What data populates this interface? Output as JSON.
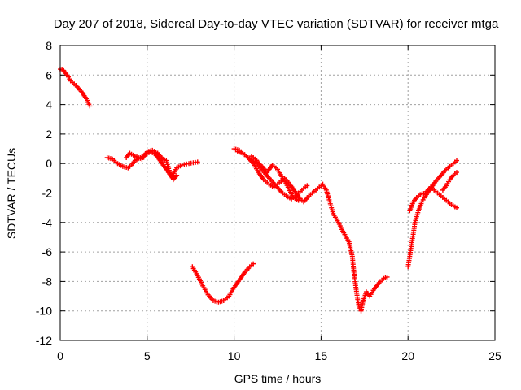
{
  "chart_data": {
    "type": "scatter",
    "title": "Day 207 of 2018, Sidereal Day-to-day VTEC variation (SDTVAR) for receiver mtga",
    "xlabel": "GPS time / hours",
    "ylabel": "SDTVAR / TECUs",
    "xlim": [
      0,
      25
    ],
    "ylim": [
      -12,
      8
    ],
    "xticks": [
      0,
      5,
      10,
      15,
      20,
      25
    ],
    "yticks": [
      -12,
      -10,
      -8,
      -6,
      -4,
      -2,
      0,
      2,
      4,
      6,
      8
    ],
    "grid": true,
    "marker": "+",
    "color": "#ff0000",
    "series": [
      {
        "name": "seg1",
        "points": [
          [
            0.0,
            6.4
          ],
          [
            0.2,
            6.3
          ],
          [
            0.4,
            6.0
          ],
          [
            0.6,
            5.6
          ],
          [
            0.9,
            5.3
          ],
          [
            1.2,
            4.9
          ],
          [
            1.5,
            4.4
          ],
          [
            1.7,
            3.9
          ]
        ]
      },
      {
        "name": "seg2",
        "points": [
          [
            2.7,
            0.4
          ],
          [
            3.0,
            0.3
          ],
          [
            3.3,
            0.0
          ],
          [
            3.6,
            -0.2
          ],
          [
            3.9,
            -0.3
          ],
          [
            4.1,
            -0.1
          ],
          [
            4.3,
            0.2
          ],
          [
            4.6,
            0.4
          ],
          [
            4.9,
            0.6
          ],
          [
            5.2,
            0.8
          ],
          [
            5.5,
            0.6
          ],
          [
            5.8,
            0.1
          ],
          [
            6.1,
            -0.4
          ],
          [
            6.4,
            -0.9
          ],
          [
            6.7,
            -0.3
          ],
          [
            7.0,
            -0.1
          ],
          [
            7.4,
            0.0
          ],
          [
            7.9,
            0.1
          ]
        ]
      },
      {
        "name": "seg2b",
        "points": [
          [
            3.8,
            0.4
          ],
          [
            4.0,
            0.7
          ],
          [
            4.3,
            0.5
          ],
          [
            4.7,
            0.3
          ],
          [
            5.0,
            0.8
          ],
          [
            5.3,
            0.9
          ],
          [
            5.6,
            0.7
          ],
          [
            5.9,
            0.3
          ],
          [
            6.1,
            0.2
          ],
          [
            6.3,
            -0.6
          ],
          [
            6.5,
            -1.1
          ],
          [
            6.7,
            -0.8
          ]
        ]
      },
      {
        "name": "seg3",
        "points": [
          [
            7.6,
            -7.0
          ],
          [
            7.9,
            -7.6
          ],
          [
            8.2,
            -8.3
          ],
          [
            8.5,
            -8.9
          ],
          [
            8.8,
            -9.3
          ],
          [
            9.1,
            -9.4
          ],
          [
            9.4,
            -9.3
          ],
          [
            9.7,
            -9.0
          ],
          [
            10.0,
            -8.4
          ],
          [
            10.3,
            -7.9
          ],
          [
            10.6,
            -7.4
          ],
          [
            10.9,
            -7.0
          ],
          [
            11.1,
            -6.8
          ]
        ]
      },
      {
        "name": "seg4",
        "points": [
          [
            10.0,
            1.0
          ],
          [
            10.3,
            0.9
          ],
          [
            10.6,
            0.6
          ],
          [
            10.9,
            0.3
          ],
          [
            11.2,
            0.1
          ],
          [
            11.5,
            -0.3
          ],
          [
            11.8,
            -0.7
          ],
          [
            12.1,
            -1.1
          ],
          [
            12.4,
            -1.5
          ],
          [
            12.7,
            -1.9
          ],
          [
            13.0,
            -2.2
          ],
          [
            13.3,
            -2.4
          ],
          [
            13.6,
            -2.1
          ],
          [
            13.9,
            -1.8
          ],
          [
            14.2,
            -1.5
          ]
        ]
      },
      {
        "name": "seg4b",
        "points": [
          [
            10.2,
            0.8
          ],
          [
            10.5,
            0.7
          ],
          [
            10.8,
            0.4
          ],
          [
            11.1,
            0.0
          ],
          [
            11.4,
            -0.6
          ],
          [
            11.7,
            -1.1
          ],
          [
            12.0,
            -1.4
          ],
          [
            12.3,
            -1.6
          ],
          [
            12.6,
            -1.3
          ],
          [
            12.9,
            -1.0
          ],
          [
            13.2,
            -1.4
          ],
          [
            13.5,
            -1.9
          ],
          [
            13.8,
            -2.4
          ],
          [
            14.0,
            -2.6
          ],
          [
            14.3,
            -2.2
          ],
          [
            14.6,
            -1.9
          ],
          [
            14.9,
            -1.6
          ],
          [
            15.1,
            -1.4
          ],
          [
            15.3,
            -1.8
          ],
          [
            15.5,
            -2.6
          ],
          [
            15.7,
            -3.4
          ],
          [
            16.0,
            -4.0
          ],
          [
            16.3,
            -4.7
          ],
          [
            16.6,
            -5.3
          ]
        ]
      },
      {
        "name": "seg4c",
        "points": [
          [
            11.0,
            0.5
          ],
          [
            11.3,
            0.2
          ],
          [
            11.6,
            -0.2
          ],
          [
            11.9,
            -0.6
          ],
          [
            12.2,
            -0.1
          ],
          [
            12.5,
            -0.4
          ],
          [
            12.8,
            -1.0
          ],
          [
            13.1,
            -1.6
          ],
          [
            13.4,
            -2.3
          ],
          [
            13.7,
            -2.5
          ]
        ]
      },
      {
        "name": "seg5",
        "points": [
          [
            16.6,
            -5.3
          ],
          [
            16.8,
            -6.3
          ],
          [
            16.9,
            -7.5
          ],
          [
            17.0,
            -8.4
          ],
          [
            17.1,
            -9.2
          ],
          [
            17.2,
            -9.8
          ],
          [
            17.3,
            -10.0
          ],
          [
            17.4,
            -9.4
          ],
          [
            17.6,
            -8.7
          ],
          [
            17.8,
            -9.0
          ],
          [
            18.0,
            -8.6
          ],
          [
            18.2,
            -8.3
          ],
          [
            18.4,
            -8.0
          ],
          [
            18.6,
            -7.8
          ],
          [
            18.8,
            -7.7
          ]
        ]
      },
      {
        "name": "seg6",
        "points": [
          [
            20.0,
            -7.0
          ],
          [
            20.1,
            -6.3
          ],
          [
            20.2,
            -5.5
          ],
          [
            20.3,
            -4.8
          ],
          [
            20.4,
            -4.0
          ],
          [
            20.6,
            -3.2
          ],
          [
            20.8,
            -2.6
          ],
          [
            21.0,
            -2.2
          ],
          [
            21.3,
            -1.7
          ],
          [
            21.6,
            -1.2
          ],
          [
            21.9,
            -0.8
          ],
          [
            22.2,
            -0.4
          ],
          [
            22.5,
            -0.1
          ],
          [
            22.8,
            0.2
          ]
        ]
      },
      {
        "name": "seg6b",
        "points": [
          [
            20.1,
            -3.2
          ],
          [
            20.3,
            -2.6
          ],
          [
            20.5,
            -2.3
          ],
          [
            20.7,
            -2.1
          ],
          [
            21.0,
            -2.0
          ],
          [
            21.3,
            -1.6
          ],
          [
            21.6,
            -1.9
          ],
          [
            21.9,
            -2.2
          ],
          [
            22.2,
            -2.5
          ],
          [
            22.5,
            -2.8
          ],
          [
            22.8,
            -3.0
          ]
        ]
      },
      {
        "name": "seg6c",
        "points": [
          [
            22.0,
            -1.8
          ],
          [
            22.2,
            -1.5
          ],
          [
            22.4,
            -1.1
          ],
          [
            22.6,
            -0.8
          ],
          [
            22.8,
            -0.6
          ]
        ]
      }
    ]
  }
}
